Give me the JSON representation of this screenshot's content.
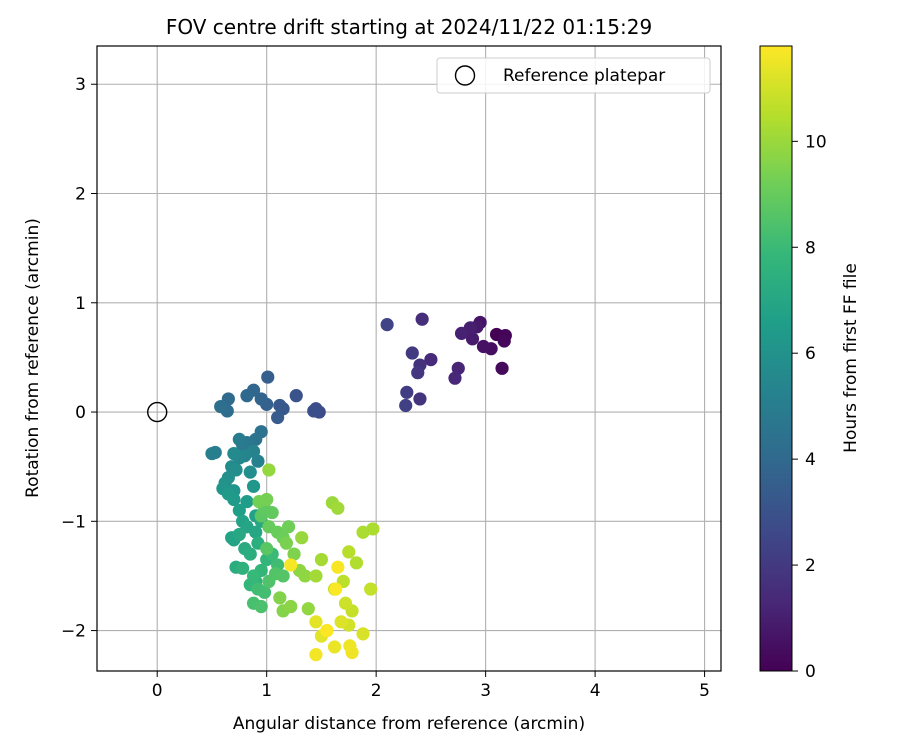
{
  "chart_data": {
    "type": "scatter",
    "title": "FOV centre drift starting at 2024/11/22 01:15:29",
    "xlabel": "Angular distance from reference (arcmin)",
    "ylabel": "Rotation from reference (arcmin)",
    "xlim": [
      -0.55,
      5.15
    ],
    "ylim": [
      -2.37,
      3.35
    ],
    "xticks": [
      0,
      1,
      2,
      3,
      4,
      5
    ],
    "xtick_labels": [
      "0",
      "1",
      "2",
      "3",
      "4",
      "5"
    ],
    "yticks": [
      -2,
      -1,
      0,
      1,
      2,
      3
    ],
    "ytick_labels": [
      "−2",
      "−1",
      "0",
      "1",
      "2",
      "3"
    ],
    "grid": true,
    "legend": {
      "position": "upper-right",
      "entries": [
        "Reference platepar"
      ]
    },
    "colorbar": {
      "label": "Hours from first FF file",
      "colormap": "viridis",
      "range": [
        0,
        11.8
      ],
      "ticks": [
        0,
        2,
        4,
        6,
        8,
        10
      ],
      "tick_labels": [
        "0",
        "2",
        "4",
        "6",
        "8",
        "10"
      ]
    },
    "reference_point": {
      "x": 0,
      "y": 0
    },
    "points": [
      [
        3.1,
        0.71,
        0.0
      ],
      [
        3.18,
        0.7,
        0.1
      ],
      [
        3.17,
        0.65,
        0.2
      ],
      [
        3.15,
        0.4,
        0.3
      ],
      [
        3.05,
        0.58,
        0.45
      ],
      [
        2.98,
        0.6,
        0.55
      ],
      [
        2.95,
        0.82,
        0.65
      ],
      [
        2.92,
        0.78,
        0.8
      ],
      [
        2.88,
        0.67,
        0.9
      ],
      [
        2.86,
        0.77,
        1.0
      ],
      [
        2.78,
        0.72,
        1.1
      ],
      [
        2.75,
        0.4,
        1.2
      ],
      [
        2.72,
        0.31,
        1.3
      ],
      [
        2.5,
        0.48,
        1.45
      ],
      [
        2.42,
        0.85,
        1.55
      ],
      [
        2.4,
        0.43,
        1.7
      ],
      [
        2.4,
        0.12,
        1.8
      ],
      [
        2.38,
        0.36,
        1.9
      ],
      [
        2.33,
        0.54,
        2.0
      ],
      [
        2.28,
        0.18,
        2.15
      ],
      [
        2.27,
        0.06,
        2.25
      ],
      [
        2.1,
        0.8,
        2.4
      ],
      [
        1.48,
        0.0,
        2.7
      ],
      [
        1.45,
        0.03,
        2.8
      ],
      [
        1.43,
        0.01,
        2.9
      ],
      [
        1.27,
        0.15,
        3.05
      ],
      [
        1.15,
        0.03,
        3.2
      ],
      [
        1.12,
        0.06,
        3.3
      ],
      [
        1.1,
        -0.05,
        3.4
      ],
      [
        1.01,
        0.32,
        3.55
      ],
      [
        1.0,
        0.07,
        3.65
      ],
      [
        0.95,
        0.12,
        3.75
      ],
      [
        0.88,
        0.2,
        3.9
      ],
      [
        0.82,
        0.15,
        4.0
      ],
      [
        0.65,
        0.12,
        4.1
      ],
      [
        0.64,
        0.01,
        4.2
      ],
      [
        0.58,
        0.05,
        4.3
      ],
      [
        0.95,
        -0.18,
        4.45
      ],
      [
        0.9,
        -0.25,
        4.55
      ],
      [
        0.82,
        -0.28,
        4.7
      ],
      [
        0.78,
        -0.3,
        4.8
      ],
      [
        0.75,
        -0.25,
        4.9
      ],
      [
        0.53,
        -0.37,
        5.0
      ],
      [
        0.5,
        -0.38,
        5.1
      ],
      [
        0.92,
        -0.45,
        5.2
      ],
      [
        0.88,
        -0.36,
        5.3
      ],
      [
        0.8,
        -0.4,
        5.4
      ],
      [
        0.75,
        -0.42,
        5.5
      ],
      [
        0.7,
        -0.38,
        5.6
      ],
      [
        0.68,
        -0.5,
        5.7
      ],
      [
        0.72,
        -0.53,
        5.8
      ],
      [
        0.85,
        -0.55,
        5.85
      ],
      [
        0.65,
        -0.6,
        5.9
      ],
      [
        0.62,
        -0.65,
        6.0
      ],
      [
        0.6,
        -0.7,
        6.1
      ],
      [
        0.7,
        -0.72,
        6.15
      ],
      [
        0.88,
        -0.68,
        6.2
      ],
      [
        0.65,
        -0.75,
        6.3
      ],
      [
        0.7,
        -0.8,
        6.4
      ],
      [
        0.82,
        -0.82,
        6.5
      ],
      [
        0.75,
        -0.9,
        6.6
      ],
      [
        0.9,
        -0.95,
        6.7
      ],
      [
        0.78,
        -1.0,
        6.75
      ],
      [
        0.68,
        -1.15,
        6.8
      ],
      [
        0.7,
        -1.17,
        6.85
      ],
      [
        0.82,
        -1.05,
        6.9
      ],
      [
        0.9,
        -1.1,
        7.0
      ],
      [
        0.75,
        -1.12,
        7.05
      ],
      [
        0.95,
        -1.0,
        7.1
      ],
      [
        0.8,
        -1.25,
        7.2
      ],
      [
        0.72,
        -1.42,
        7.3
      ],
      [
        0.85,
        -1.3,
        7.35
      ],
      [
        0.92,
        -1.2,
        7.4
      ],
      [
        0.78,
        -1.43,
        7.5
      ],
      [
        0.9,
        -1.55,
        7.6
      ],
      [
        1.0,
        -1.35,
        7.7
      ],
      [
        0.95,
        -1.45,
        7.75
      ],
      [
        0.85,
        -1.58,
        7.8
      ],
      [
        0.88,
        -1.5,
        7.9
      ],
      [
        1.05,
        -1.3,
        8.0
      ],
      [
        1.1,
        -1.4,
        8.1
      ],
      [
        0.92,
        -1.62,
        8.15
      ],
      [
        0.98,
        -1.65,
        8.2
      ],
      [
        0.88,
        -1.75,
        8.3
      ],
      [
        0.95,
        -1.78,
        8.4
      ],
      [
        1.02,
        -1.55,
        8.5
      ],
      [
        1.08,
        -1.48,
        8.55
      ],
      [
        1.15,
        -1.5,
        8.6
      ],
      [
        1.0,
        -1.25,
        8.7
      ],
      [
        0.95,
        -0.95,
        8.75
      ],
      [
        0.98,
        -0.88,
        8.85
      ],
      [
        1.05,
        -0.92,
        8.9
      ],
      [
        1.02,
        -1.05,
        9.0
      ],
      [
        1.1,
        -1.1,
        9.05
      ],
      [
        1.15,
        -1.15,
        9.1
      ],
      [
        1.2,
        -1.05,
        9.2
      ],
      [
        0.93,
        -0.82,
        9.25
      ],
      [
        1.0,
        -0.8,
        9.3
      ],
      [
        1.18,
        -1.2,
        9.4
      ],
      [
        1.25,
        -1.3,
        9.5
      ],
      [
        1.12,
        -1.7,
        9.55
      ],
      [
        1.15,
        -1.82,
        9.6
      ],
      [
        1.22,
        -1.78,
        9.7
      ],
      [
        1.3,
        -1.45,
        9.75
      ],
      [
        1.35,
        -1.5,
        9.8
      ],
      [
        1.38,
        -1.8,
        9.85
      ],
      [
        1.02,
        -0.53,
        9.9
      ],
      [
        1.32,
        -1.15,
        9.95
      ],
      [
        1.6,
        -0.83,
        10.0
      ],
      [
        1.65,
        -0.88,
        10.1
      ],
      [
        1.45,
        -1.5,
        10.15
      ],
      [
        1.5,
        -1.35,
        10.2
      ],
      [
        1.88,
        -1.1,
        10.3
      ],
      [
        1.97,
        -1.07,
        10.35
      ],
      [
        1.82,
        -1.38,
        10.4
      ],
      [
        1.75,
        -1.28,
        10.5
      ],
      [
        1.7,
        -1.55,
        10.6
      ],
      [
        1.62,
        -1.62,
        10.7
      ],
      [
        1.95,
        -1.62,
        10.75
      ],
      [
        1.78,
        -1.82,
        10.8
      ],
      [
        1.72,
        -1.75,
        10.9
      ],
      [
        1.75,
        -1.95,
        11.0
      ],
      [
        1.88,
        -2.03,
        11.1
      ],
      [
        1.68,
        -1.92,
        11.2
      ],
      [
        1.55,
        -2.0,
        11.25
      ],
      [
        1.5,
        -2.05,
        11.3
      ],
      [
        1.45,
        -1.92,
        11.35
      ],
      [
        1.62,
        -2.15,
        11.45
      ],
      [
        1.76,
        -2.14,
        11.5
      ],
      [
        1.78,
        -2.2,
        11.55
      ],
      [
        1.45,
        -2.22,
        11.6
      ],
      [
        1.22,
        -1.4,
        11.65
      ],
      [
        1.65,
        -1.42,
        11.7
      ],
      [
        1.63,
        -1.62,
        11.75
      ],
      [
        1.55,
        -2.0,
        11.8
      ]
    ]
  }
}
